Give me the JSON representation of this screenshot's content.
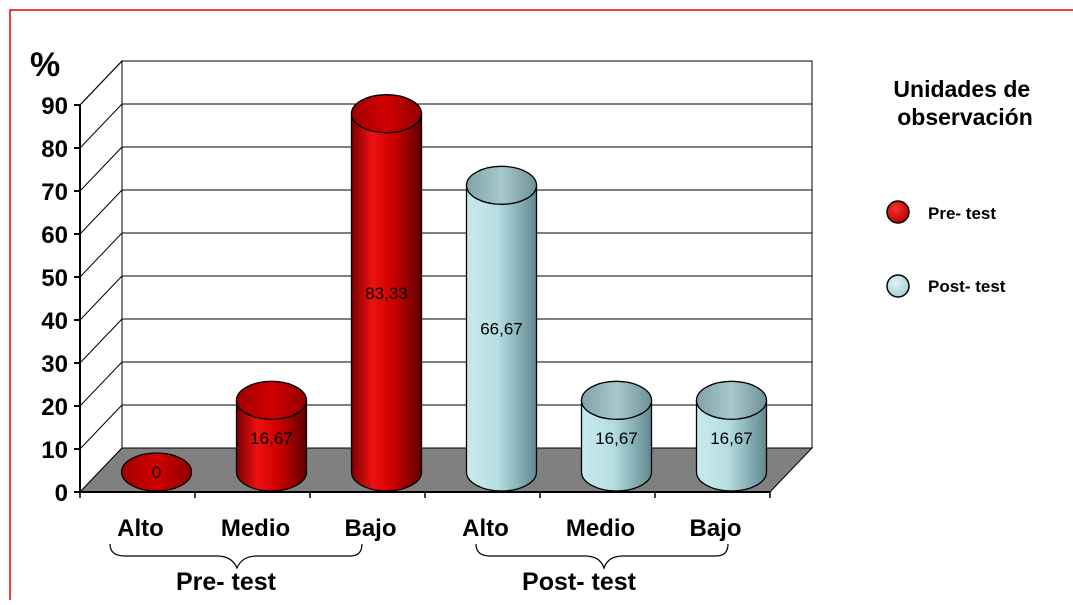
{
  "chart_data": {
    "type": "bar",
    "style": "3d-cylinder",
    "title": "",
    "ylabel": "%",
    "xlabel": "",
    "ylim": [
      0,
      90
    ],
    "yticks": [
      0,
      10,
      20,
      30,
      40,
      50,
      60,
      70,
      80,
      90
    ],
    "grid": true,
    "categories": [
      "Alto",
      "Medio",
      "Bajo",
      "Alto",
      "Medio",
      "Bajo"
    ],
    "values": [
      0,
      16.67,
      83.33,
      66.67,
      16.67,
      16.67
    ],
    "value_labels": [
      "0",
      "16,67",
      "83,33",
      "66,67",
      "16,67",
      "16,67"
    ],
    "bar_series": [
      "Pre- test",
      "Pre- test",
      "Pre- test",
      "Post- test",
      "Post- test",
      "Post- test"
    ],
    "groups": [
      {
        "label": "Pre- test",
        "categories": [
          "Alto",
          "Medio",
          "Bajo"
        ]
      },
      {
        "label": "Post- test",
        "categories": [
          "Alto",
          "Medio",
          "Bajo"
        ]
      }
    ],
    "legend": {
      "title": "Unidades de observación",
      "placement": "right",
      "items": [
        {
          "name": "Pre- test",
          "color": "#e00000"
        },
        {
          "name": "Post- test",
          "color": "#b8dde0"
        }
      ]
    },
    "colors": {
      "border": "#e00000",
      "floor": "#808080",
      "grid": "#000000"
    }
  }
}
